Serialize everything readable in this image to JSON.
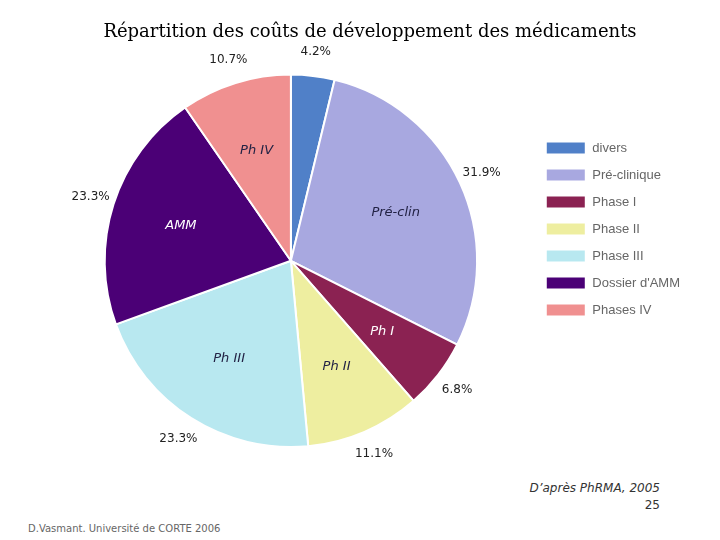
{
  "chart_data": {
    "type": "pie",
    "title": "Répartition des coûts de développement des médicaments",
    "categories": [
      "divers",
      "Pré-clinique",
      "Phase I",
      "Phase II",
      "Phase III",
      "Dossier d'AMM",
      "Phases IV"
    ],
    "slice_labels": [
      null,
      "Pré-clin",
      "Ph I",
      "Ph II",
      "Ph III",
      "AMM",
      "Ph IV"
    ],
    "values": [
      4.2,
      31.9,
      6.8,
      11.1,
      23.3,
      23.3,
      10.7
    ],
    "value_labels": [
      "4.2%",
      "31.9%",
      "6.8%",
      "11.1%",
      "23.3%",
      "23.3%",
      "10.7%"
    ],
    "colors": [
      "#5080c8",
      "#a8a8e0",
      "#8b2252",
      "#eeeea0",
      "#b8e8f0",
      "#4b0076",
      "#f09090"
    ],
    "data_labels": true,
    "legend": "right",
    "annotations": [
      "D’après PhRMA, 2005",
      "25",
      "D.Vasmant. Université de CORTE 2006"
    ]
  }
}
